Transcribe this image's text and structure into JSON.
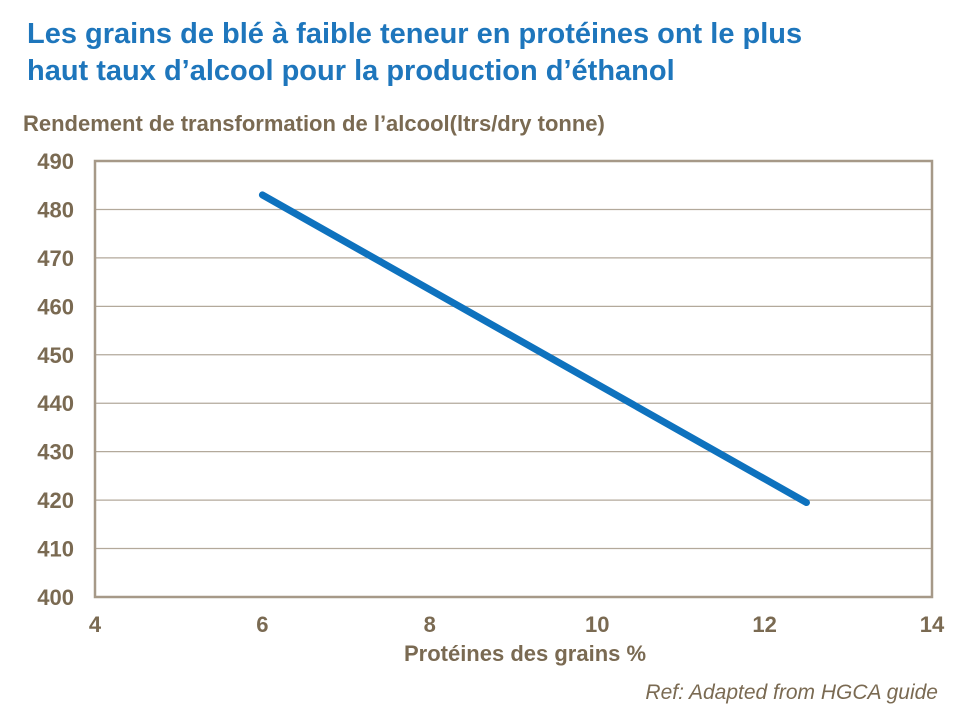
{
  "header": {
    "title_lines": [
      "Les grains de blé à faible teneur en protéines ont le plus",
      "haut taux d’alcool pour la production d’éthanol"
    ]
  },
  "footer": {
    "ref": "Ref: Adapted from HGCA guide"
  },
  "colors": {
    "title_blue": "#1E76BC",
    "axis_brown": "#7A6A52",
    "gridline": "#B3A99B",
    "frame": "#A69988",
    "line_blue": "#0E72BE"
  },
  "chart_data": {
    "type": "line",
    "title": "Les grains de blé à faible teneur en protéines ont le plus haut taux d’alcool pour la production d’éthanol",
    "ylabel": "Rendement de transformation de l’alcool(ltrs/dry tonne)",
    "xlabel": "Protéines des grains %",
    "xlim": [
      4,
      14
    ],
    "ylim": [
      400,
      490
    ],
    "xticks": [
      4,
      6,
      8,
      10,
      12,
      14
    ],
    "yticks": [
      400,
      410,
      420,
      430,
      440,
      450,
      460,
      470,
      480,
      490
    ],
    "grid": "horizontal",
    "legend_position": "none",
    "series": [
      {
        "name": "Rendement de transformation de l’alcool",
        "points": [
          [
            6,
            483
          ],
          [
            12.5,
            419.5
          ]
        ]
      }
    ]
  }
}
